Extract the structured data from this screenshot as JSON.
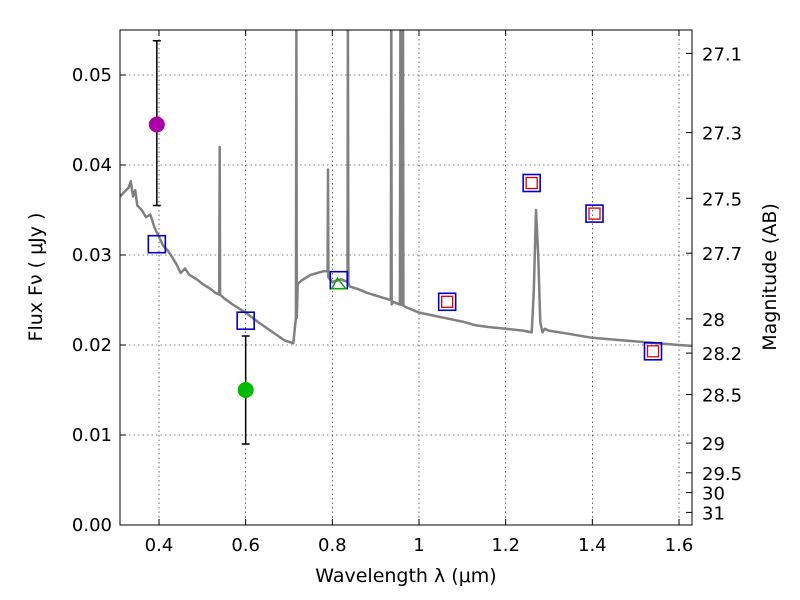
{
  "chart_data": {
    "type": "scatter",
    "title": "",
    "xlabel": "Wavelength  λ (μm)",
    "ylabel": "Flux  Fν  ( μJy )",
    "y2label": "Magnitude (AB)",
    "xlim": [
      0.31,
      1.63
    ],
    "ylim": [
      0.0,
      0.055
    ],
    "grid": true,
    "x_ticks": [
      0.4,
      0.6,
      0.8,
      1.0,
      1.2,
      1.4,
      1.6
    ],
    "x_tick_labels": [
      "0.4",
      "0.6",
      "0.8",
      "1",
      "1.2",
      "1.4",
      "1.6"
    ],
    "y_ticks": [
      0.0,
      0.01,
      0.02,
      0.03,
      0.04,
      0.05
    ],
    "y_tick_labels": [
      "0.00",
      "0.01",
      "0.02",
      "0.03",
      "0.04",
      "0.05"
    ],
    "y2_ticks": [
      {
        "label": "27.1",
        "flux": 0.0524
      },
      {
        "label": "27.3",
        "flux": 0.0436
      },
      {
        "label": "27.5",
        "flux": 0.0363
      },
      {
        "label": "27.7",
        "flux": 0.0302
      },
      {
        "label": "28",
        "flux": 0.0229
      },
      {
        "label": "28.2",
        "flux": 0.0191
      },
      {
        "label": "28.5",
        "flux": 0.0145
      },
      {
        "label": "29",
        "flux": 0.0091
      },
      {
        "label": "29.5",
        "flux": 0.0058
      },
      {
        "label": "30",
        "flux": 0.0036
      },
      {
        "label": "31",
        "flux": 0.0014
      }
    ],
    "model_spectrum": {
      "name": "model SED",
      "color": "#808080",
      "x": [
        0.31,
        0.32,
        0.33,
        0.335,
        0.34,
        0.345,
        0.35,
        0.36,
        0.37,
        0.38,
        0.39,
        0.4,
        0.41,
        0.42,
        0.43,
        0.44,
        0.45,
        0.46,
        0.47,
        0.48,
        0.49,
        0.5,
        0.51,
        0.52,
        0.53,
        0.539,
        0.54,
        0.541,
        0.55,
        0.57,
        0.6,
        0.63,
        0.66,
        0.69,
        0.71,
        0.716,
        0.717,
        0.718,
        0.72,
        0.73,
        0.75,
        0.78,
        0.789,
        0.79,
        0.791,
        0.8,
        0.82,
        0.835,
        0.836,
        0.837,
        0.84,
        0.86,
        0.88,
        0.9,
        0.92,
        0.935,
        0.936,
        0.937,
        0.94,
        0.95,
        0.956,
        0.957,
        0.958,
        0.96,
        0.962,
        0.963,
        0.964,
        0.966,
        0.97,
        0.99,
        1.0,
        1.02,
        1.05,
        1.08,
        1.1,
        1.13,
        1.16,
        1.2,
        1.24,
        1.26,
        1.265,
        1.27,
        1.275,
        1.28,
        1.285,
        1.29,
        1.3,
        1.35,
        1.4,
        1.45,
        1.5,
        1.55,
        1.6,
        1.63
      ],
      "y": [
        0.0365,
        0.037,
        0.0375,
        0.0382,
        0.0365,
        0.0372,
        0.0355,
        0.035,
        0.0342,
        0.0345,
        0.033,
        0.032,
        0.031,
        0.0305,
        0.0298,
        0.029,
        0.028,
        0.0285,
        0.0278,
        0.0275,
        0.0272,
        0.0268,
        0.0265,
        0.0262,
        0.0258,
        0.0256,
        0.042,
        0.0256,
        0.0252,
        0.0245,
        0.0236,
        0.0225,
        0.0215,
        0.0205,
        0.0202,
        0.023,
        0.056,
        0.023,
        0.0268,
        0.0272,
        0.0278,
        0.0282,
        0.0282,
        0.0395,
        0.0275,
        0.027,
        0.0273,
        0.027,
        0.056,
        0.0268,
        0.0265,
        0.0262,
        0.0258,
        0.0255,
        0.0252,
        0.025,
        0.056,
        0.0245,
        0.0248,
        0.0246,
        0.0245,
        0.056,
        0.0245,
        0.056,
        0.0244,
        0.056,
        0.0244,
        0.0243,
        0.0242,
        0.0238,
        0.0236,
        0.0234,
        0.0231,
        0.0228,
        0.0226,
        0.0222,
        0.022,
        0.0218,
        0.0216,
        0.0214,
        0.026,
        0.035,
        0.03,
        0.0225,
        0.0214,
        0.0218,
        0.0216,
        0.0212,
        0.0208,
        0.0206,
        0.0204,
        0.0202,
        0.02,
        0.0199
      ]
    },
    "model_bandpass_points": {
      "name": "model photometry",
      "marker": "open square",
      "color": "#0000cc",
      "x": [
        0.395,
        0.6,
        0.815,
        1.065,
        1.26,
        1.405,
        1.54
      ],
      "y": [
        0.0312,
        0.0227,
        0.0272,
        0.0248,
        0.038,
        0.0346,
        0.0193
      ]
    },
    "observed_points": [
      {
        "name": "observed (magenta)",
        "color": "#aa00aa",
        "x": 0.395,
        "y": 0.0445,
        "y_err_low": 0.0355,
        "y_err_high": 0.0538
      },
      {
        "name": "observed (green)",
        "color": "#00bb00",
        "x": 0.6,
        "y": 0.015,
        "y_err_low": 0.009,
        "y_err_high": 0.021
      },
      {
        "name": "green triangle",
        "color": "#00aa00",
        "marker": "open triangle",
        "x": 0.815,
        "y": 0.0268
      }
    ],
    "red_square_points": {
      "name": "observed (red squares)",
      "marker": "small open square",
      "color": "#dd0000",
      "x": [
        1.065,
        1.26,
        1.405,
        1.54
      ],
      "y": [
        0.0248,
        0.038,
        0.0346,
        0.0193
      ]
    }
  }
}
